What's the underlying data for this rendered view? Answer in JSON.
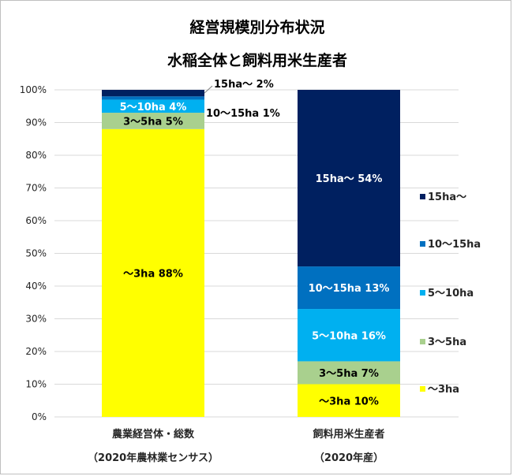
{
  "chart_data": {
    "type": "bar",
    "stacked": true,
    "title": "経営規模別分布状況",
    "subtitle": "水稲全体と飼料用米生産者",
    "ylim": [
      0,
      100
    ],
    "y_ticks": [
      "0%",
      "10%",
      "20%",
      "30%",
      "40%",
      "50%",
      "60%",
      "70%",
      "80%",
      "90%",
      "100%"
    ],
    "categories": [
      {
        "line1": "農業経営体・総数",
        "line2": "（2020年農林業センサス）"
      },
      {
        "line1": "飼料用米生産者",
        "line2": "（2020年産）"
      }
    ],
    "series": [
      {
        "name": "～3ha",
        "color": "#ffff00",
        "label_color": "#000000",
        "values": [
          88,
          10
        ],
        "labels": [
          "～3ha 88%",
          "～3ha 10%"
        ]
      },
      {
        "name": "3～5ha",
        "color": "#a9d08e",
        "label_color": "#000000",
        "values": [
          5,
          7
        ],
        "labels": [
          "3～5ha 5%",
          "3～5ha 7%"
        ]
      },
      {
        "name": "5～10ha",
        "color": "#00b0f0",
        "label_color": "#ffffff",
        "values": [
          4,
          16
        ],
        "labels": [
          "5～10ha 4%",
          "5～10ha 16%"
        ]
      },
      {
        "name": "10～15ha",
        "color": "#0070c0",
        "label_color": "#ffffff",
        "values": [
          1,
          13
        ],
        "labels": [
          "10～15ha 1%",
          "10～15ha 13%"
        ]
      },
      {
        "name": "15ha～",
        "color": "#002060",
        "label_color": "#ffffff",
        "values": [
          2,
          54
        ],
        "labels": [
          "15ha～ 2%",
          "15ha～ 54%"
        ]
      }
    ],
    "legend_position": "right",
    "grid": true
  }
}
